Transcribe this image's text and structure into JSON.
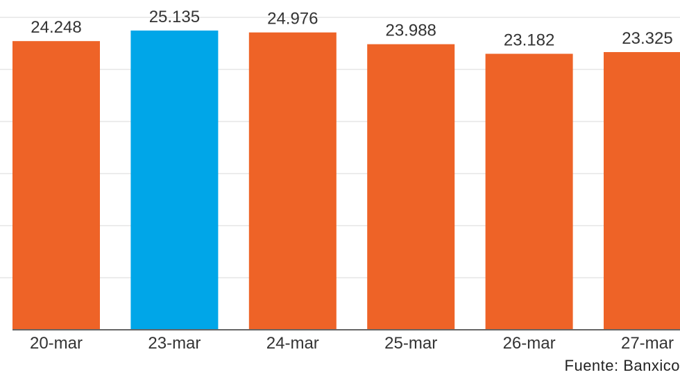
{
  "chart_data": {
    "type": "bar",
    "title": "",
    "xlabel": "",
    "ylabel": "",
    "categories": [
      "20-mar",
      "23-mar",
      "24-mar",
      "25-mar",
      "26-mar",
      "27-mar"
    ],
    "values": [
      24.248,
      25.135,
      24.976,
      23.988,
      23.182,
      23.325
    ],
    "value_labels": [
      "24.248",
      "25.135",
      "24.976",
      "23.988",
      "23.182",
      "23.325"
    ],
    "ylim": [
      0,
      27.7
    ],
    "grid": true,
    "colors": {
      "default": "#ee6327",
      "highlight": "#00a6e8",
      "highlight_category": "23-mar"
    }
  },
  "source": "Fuente: Banxico"
}
